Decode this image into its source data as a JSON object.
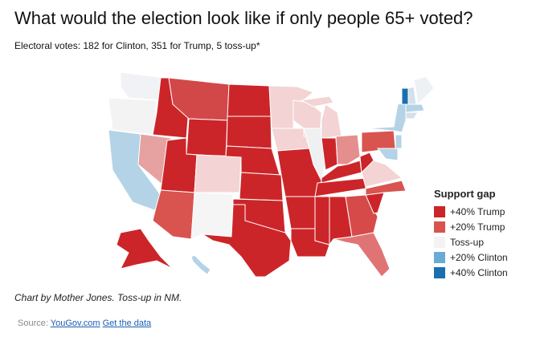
{
  "header": {
    "title": "What would the election look like if only people 65+ voted?",
    "subtitle": "Electoral votes: 182 for Clinton, 351 for Trump, 5 toss-up*"
  },
  "map": {
    "legend": {
      "title": "Support gap",
      "items": [
        {
          "label": "+40% Trump",
          "color": "#cc2529"
        },
        {
          "label": "+20% Trump",
          "color": "#d9534f"
        },
        {
          "label": "Toss-up",
          "color": "#f3f3f3"
        },
        {
          "label": "+20% Clinton",
          "color": "#6aaad6"
        },
        {
          "label": "+40% Clinton",
          "color": "#1a6fae"
        }
      ]
    },
    "regions": [
      "#f0f2f5",
      "#f3f3f3",
      "#b4d3e6",
      "#e6a1a1",
      "#cc2529",
      "#d24848",
      "#cc2529",
      "#cc2529",
      "#d9534f",
      "#f3d3d3",
      "#f5f5f5",
      "#cc2529",
      "#cc2529",
      "#cc2529",
      "#cc2529",
      "#cc2529",
      "#cc2529",
      "#f3d3d3",
      "#f3d3d3",
      "#cc2529",
      "#cc2529",
      "#cc2529",
      "#f3d3d3",
      "#eef0f2",
      "#f3d3d3",
      "#f3d3d3",
      "#cc2529",
      "#e58e8e",
      "#cc2529",
      "#cc2529",
      "#cc2529",
      "#cc2529",
      "#d64a4a",
      "#e07474",
      "#cc2529",
      "#d9534f",
      "#f3d3d3",
      "#cc2529",
      "#d9534f",
      "#b4d3e6",
      "#1a6fae",
      "#d4e0ea",
      "#eef1f4",
      "#b4d3e6",
      "#d4e0ea",
      "#b4d3e6",
      "#b4d3e6",
      "#cc2529",
      "#b4d3e6"
    ]
  },
  "notes": {
    "credit": "Chart by Mother Jones. Toss-up in NM.",
    "source": "Source:",
    "source_link": "YouGov.com",
    "data_link": "Get the data"
  }
}
